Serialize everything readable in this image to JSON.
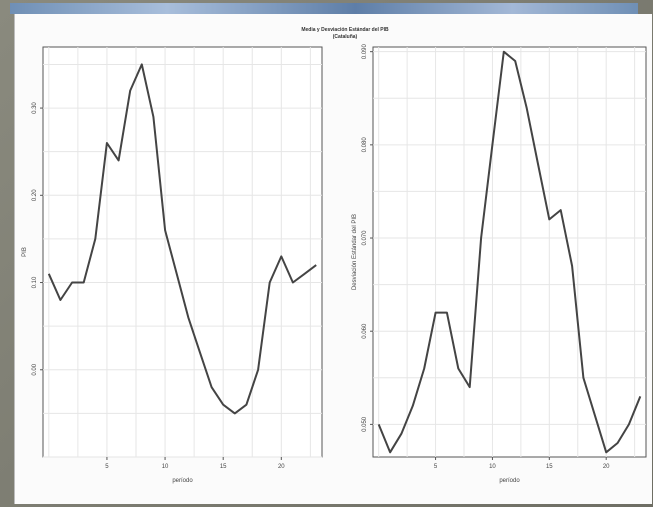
{
  "window": {
    "title": "Media y Desviación Estándar del PIB",
    "subtitle": "(Cataluña)"
  },
  "chart_data": [
    {
      "type": "line",
      "title": "",
      "xlabel": "período",
      "ylabel": "PIB",
      "xlim": [
        -0.5,
        23.5
      ],
      "ylim": [
        -0.1,
        0.37
      ],
      "xticks": [
        5,
        10,
        15,
        20
      ],
      "xtick_labels": [
        "5",
        "10",
        "15",
        "20"
      ],
      "yticks": [
        0.0,
        0.1,
        0.2,
        0.3
      ],
      "ytick_labels": [
        "0.00",
        "0.10",
        "0.20",
        "0.30"
      ],
      "grid": true,
      "series": [
        {
          "x": [
            0,
            1,
            2,
            3,
            4,
            5,
            6,
            7,
            8,
            9,
            10,
            11,
            12,
            13,
            14,
            15,
            16,
            17,
            18,
            19,
            20,
            21,
            22,
            23
          ],
          "values": [
            0.11,
            0.08,
            0.1,
            0.1,
            0.15,
            0.26,
            0.24,
            0.32,
            0.35,
            0.29,
            0.16,
            0.11,
            0.06,
            0.02,
            -0.02,
            -0.04,
            -0.05,
            -0.04,
            0.0,
            0.1,
            0.13,
            0.1,
            0.11,
            0.12
          ]
        }
      ]
    },
    {
      "type": "line",
      "title": "",
      "xlabel": "período",
      "ylabel": "Desviación Estándar del PIB",
      "xlim": [
        -0.5,
        23.5
      ],
      "ylim": [
        0.0465,
        0.0905
      ],
      "xticks": [
        5,
        10,
        15,
        20
      ],
      "xtick_labels": [
        "5",
        "10",
        "15",
        "20"
      ],
      "yticks": [
        0.05,
        0.06,
        0.07,
        0.08,
        0.09
      ],
      "ytick_labels": [
        "0.050",
        "0.060",
        "0.070",
        "0.080",
        "0.090"
      ],
      "grid": true,
      "series": [
        {
          "x": [
            0,
            1,
            2,
            3,
            4,
            5,
            6,
            7,
            8,
            9,
            10,
            11,
            12,
            13,
            14,
            15,
            16,
            17,
            18,
            19,
            20,
            21,
            22,
            23
          ],
          "values": [
            0.05,
            0.047,
            0.049,
            0.052,
            0.056,
            0.062,
            0.062,
            0.056,
            0.054,
            0.07,
            0.08,
            0.09,
            0.089,
            0.084,
            0.078,
            0.072,
            0.073,
            0.067,
            0.055,
            0.051,
            0.047,
            0.048,
            0.05,
            0.053
          ]
        }
      ]
    }
  ]
}
